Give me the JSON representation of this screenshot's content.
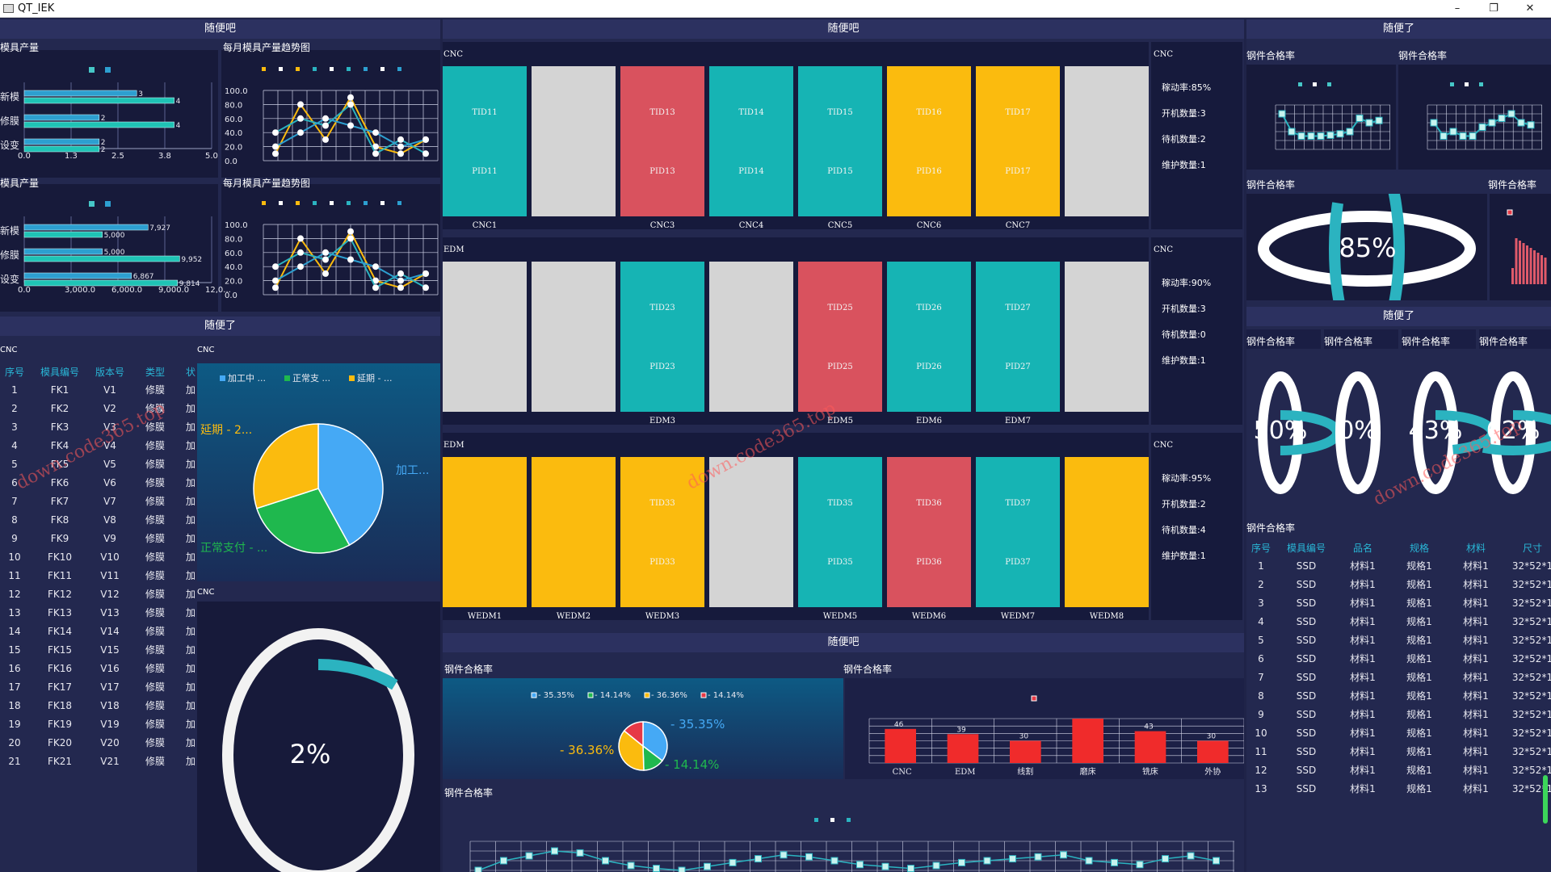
{
  "window": {
    "title": "QT_IEK",
    "min": "–",
    "max": "❐",
    "close": "✕"
  },
  "left": {
    "header_top": "随便吧",
    "chart1": {
      "title": "模具产量",
      "cats": [
        "新模",
        "修膜",
        "设变"
      ],
      "s1": [
        3,
        2,
        2
      ],
      "s2": [
        4,
        4,
        2
      ],
      "xticks": [
        "0.0",
        "1.3",
        "2.5",
        "3.8",
        "5.0"
      ],
      "s1_labels": [
        "3",
        "2",
        "2"
      ],
      "s2_labels": [
        "4",
        "4",
        "2"
      ]
    },
    "chart2": {
      "title": "每月模具产量趋势图",
      "yticks": [
        "100.0",
        "80.0",
        "60.0",
        "40.0",
        "20.0",
        "0.0"
      ],
      "a": [
        10,
        80,
        30,
        90,
        20,
        10,
        30
      ],
      "b": [
        40,
        60,
        50,
        80,
        10,
        30,
        10
      ],
      "c": [
        20,
        40,
        60,
        50,
        40,
        20,
        30
      ]
    },
    "chart3": {
      "title": "模具产量",
      "cats": [
        "新模",
        "修膜",
        "设变"
      ],
      "s1": [
        7927,
        5000,
        6867
      ],
      "s2": [
        5000,
        9952,
        9814
      ],
      "s1_labels": [
        "7,927",
        "5,000",
        "6,867"
      ],
      "s2_labels": [
        "5,000",
        "9,952",
        "9,814"
      ],
      "xticks": [
        "0.0",
        "3,000.0",
        "6,000.0",
        "9,000.0",
        "12,0..."
      ]
    },
    "chart4": {
      "title": "每月模具产量趋势图",
      "yticks": [
        "100.0",
        "80.0",
        "60.0",
        "40.0",
        "20.0",
        "0.0"
      ]
    },
    "header_mid": "随便了",
    "cnc_a": "CNC",
    "cnc_b": "CNC",
    "cnc_c": "CNC",
    "table": {
      "headers": [
        "序号",
        "模具编号",
        "版本号",
        "类型",
        "状"
      ],
      "rows": [
        [
          "1",
          "FK1",
          "V1",
          "修膜",
          "加"
        ],
        [
          "2",
          "FK2",
          "V2",
          "修膜",
          "加"
        ],
        [
          "3",
          "FK3",
          "V3",
          "修膜",
          "加"
        ],
        [
          "4",
          "FK4",
          "V4",
          "修膜",
          "加"
        ],
        [
          "5",
          "FK5",
          "V5",
          "修膜",
          "加"
        ],
        [
          "6",
          "FK6",
          "V6",
          "修膜",
          "加"
        ],
        [
          "7",
          "FK7",
          "V7",
          "修膜",
          "加"
        ],
        [
          "8",
          "FK8",
          "V8",
          "修膜",
          "加"
        ],
        [
          "9",
          "FK9",
          "V9",
          "修膜",
          "加"
        ],
        [
          "10",
          "FK10",
          "V10",
          "修膜",
          "加"
        ],
        [
          "11",
          "FK11",
          "V11",
          "修膜",
          "加"
        ],
        [
          "12",
          "FK12",
          "V12",
          "修膜",
          "加"
        ],
        [
          "13",
          "FK13",
          "V13",
          "修膜",
          "加"
        ],
        [
          "14",
          "FK14",
          "V14",
          "修膜",
          "加"
        ],
        [
          "15",
          "FK15",
          "V15",
          "修膜",
          "加"
        ],
        [
          "16",
          "FK16",
          "V16",
          "修膜",
          "加"
        ],
        [
          "17",
          "FK17",
          "V17",
          "修膜",
          "加"
        ],
        [
          "18",
          "FK18",
          "V18",
          "修膜",
          "加"
        ],
        [
          "19",
          "FK19",
          "V19",
          "修膜",
          "加"
        ],
        [
          "20",
          "FK20",
          "V20",
          "修膜",
          "加"
        ],
        [
          "21",
          "FK21",
          "V21",
          "修膜",
          "加"
        ]
      ]
    },
    "pie": {
      "legend": [
        "加工中 ...",
        "正常支 ...",
        "延期 - ..."
      ],
      "labels": [
        "延期 - 2...",
        "加工...",
        "正常支付 - ..."
      ],
      "values": [
        40,
        30,
        30
      ]
    },
    "ring": {
      "value": "2%",
      "fraction": 0.02
    }
  },
  "center": {
    "header": "随便吧",
    "groups": [
      {
        "tag": "CNC",
        "stats": [
          "稼动率:85%",
          "开机数量:3",
          "待机数量:2",
          "维护数量:1"
        ],
        "tiles": [
          {
            "tid": "TID11",
            "pid": "PID11",
            "label": "CNC1",
            "color": "#16b4b4"
          },
          {
            "tid": "",
            "pid": "",
            "label": "",
            "color": "#d4d4d4"
          },
          {
            "tid": "TID13",
            "pid": "PID13",
            "label": "CNC3",
            "color": "#d9525e"
          },
          {
            "tid": "TID14",
            "pid": "PID14",
            "label": "CNC4",
            "color": "#16b4b4"
          },
          {
            "tid": "TID15",
            "pid": "PID15",
            "label": "CNC5",
            "color": "#16b4b4"
          },
          {
            "tid": "TID16",
            "pid": "PID16",
            "label": "CNC6",
            "color": "#fbbb0e"
          },
          {
            "tid": "TID17",
            "pid": "PID17",
            "label": "CNC7",
            "color": "#fbbb0e"
          },
          {
            "tid": "",
            "pid": "",
            "label": "",
            "color": "#d4d4d4"
          }
        ]
      },
      {
        "tag": "EDM",
        "side": "CNC",
        "stats": [
          "稼动率:90%",
          "开机数量:3",
          "待机数量:0",
          "维护数量:1"
        ],
        "tiles": [
          {
            "tid": "",
            "pid": "",
            "label": "",
            "color": "#d4d4d4"
          },
          {
            "tid": "",
            "pid": "",
            "label": "",
            "color": "#d4d4d4"
          },
          {
            "tid": "TID23",
            "pid": "PID23",
            "label": "EDM3",
            "color": "#16b4b4"
          },
          {
            "tid": "",
            "pid": "",
            "label": "",
            "color": "#d4d4d4"
          },
          {
            "tid": "TID25",
            "pid": "PID25",
            "label": "EDM5",
            "color": "#d9525e"
          },
          {
            "tid": "TID26",
            "pid": "PID26",
            "label": "EDM6",
            "color": "#16b4b4"
          },
          {
            "tid": "TID27",
            "pid": "PID27",
            "label": "EDM7",
            "color": "#16b4b4"
          },
          {
            "tid": "",
            "pid": "",
            "label": "",
            "color": "#d4d4d4"
          }
        ]
      },
      {
        "tag": "EDM",
        "side": "CNC",
        "stats": [
          "稼动率:95%",
          "开机数量:2",
          "待机数量:4",
          "维护数量:1"
        ],
        "tiles": [
          {
            "tid": "",
            "pid": "",
            "label": "WEDM1",
            "color": "#fbbb0e"
          },
          {
            "tid": "",
            "pid": "",
            "label": "WEDM2",
            "color": "#fbbb0e"
          },
          {
            "tid": "TID33",
            "pid": "PID33",
            "label": "WEDM3",
            "color": "#fbbb0e"
          },
          {
            "tid": "",
            "pid": "",
            "label": "",
            "color": "#d4d4d4"
          },
          {
            "tid": "TID35",
            "pid": "PID35",
            "label": "WEDM5",
            "color": "#16b4b4"
          },
          {
            "tid": "TID36",
            "pid": "PID36",
            "label": "WEDM6",
            "color": "#d9525e"
          },
          {
            "tid": "TID37",
            "pid": "PID37",
            "label": "WEDM7",
            "color": "#16b4b4"
          },
          {
            "tid": "",
            "pid": "",
            "label": "WEDM8",
            "color": "#fbbb0e"
          }
        ]
      }
    ],
    "bottom_header": "随便吧",
    "pie_title": "钢件合格率",
    "pie_legend": [
      "- 35.35%",
      "- 14.14%",
      "- 36.36%",
      "- 14.14%"
    ],
    "pie_labels": [
      "- 35.35%",
      "- 36.36%",
      "- 14.14%"
    ],
    "pie_values": [
      35.35,
      14.14,
      36.36,
      14.14
    ],
    "bar_title": "钢件合格率",
    "bar": {
      "cats": [
        "CNC",
        "EDM",
        "线割",
        "磨床",
        "铣床",
        "外协"
      ],
      "values": [
        46,
        39,
        30,
        60,
        43,
        30
      ],
      "labels": [
        "46",
        "39",
        "30",
        "",
        "43",
        "30"
      ]
    },
    "line_title": "钢件合格率"
  },
  "right": {
    "header_top": "随便了",
    "t1": "钢件合格率",
    "t2": "钢件合格率",
    "t3": "钢件合格率",
    "t4": "钢件合格率",
    "ring_big": {
      "value": "85%",
      "fraction": 0.85
    },
    "header_mid": "随便了",
    "small_titles": [
      "钢件合格率",
      "钢件合格率",
      "钢件合格率",
      "钢件合格率"
    ],
    "small_rings": [
      {
        "value": "50%",
        "fraction": 0.5
      },
      {
        "value": "0%",
        "fraction": 0.0
      },
      {
        "value": "43%",
        "fraction": 0.43
      },
      {
        "value": "62%",
        "fraction": 0.62
      }
    ],
    "table_title": "钢件合格率",
    "table": {
      "headers": [
        "序号",
        "模具编号",
        "品名",
        "规格",
        "材料",
        "尺寸"
      ],
      "rows": [
        [
          "1",
          "SSD",
          "材料1",
          "规格1",
          "材料1",
          "32*52*1"
        ],
        [
          "2",
          "SSD",
          "材料1",
          "规格1",
          "材料1",
          "32*52*1"
        ],
        [
          "3",
          "SSD",
          "材料1",
          "规格1",
          "材料1",
          "32*52*1"
        ],
        [
          "4",
          "SSD",
          "材料1",
          "规格1",
          "材料1",
          "32*52*1"
        ],
        [
          "5",
          "SSD",
          "材料1",
          "规格1",
          "材料1",
          "32*52*1"
        ],
        [
          "6",
          "SSD",
          "材料1",
          "规格1",
          "材料1",
          "32*52*1"
        ],
        [
          "7",
          "SSD",
          "材料1",
          "规格1",
          "材料1",
          "32*52*1"
        ],
        [
          "8",
          "SSD",
          "材料1",
          "规格1",
          "材料1",
          "32*52*1"
        ],
        [
          "9",
          "SSD",
          "材料1",
          "规格1",
          "材料1",
          "32*52*1"
        ],
        [
          "10",
          "SSD",
          "材料1",
          "规格1",
          "材料1",
          "32*52*1"
        ],
        [
          "11",
          "SSD",
          "材料1",
          "规格1",
          "材料1",
          "32*52*1"
        ],
        [
          "12",
          "SSD",
          "材料1",
          "规格1",
          "材料1",
          "32*52*1"
        ],
        [
          "13",
          "SSD",
          "材料1",
          "规格1",
          "材料1",
          "32*52*1"
        ]
      ]
    }
  },
  "watermarks": [
    "down.code365.top",
    "down.code365.top",
    "down.code365.top"
  ]
}
